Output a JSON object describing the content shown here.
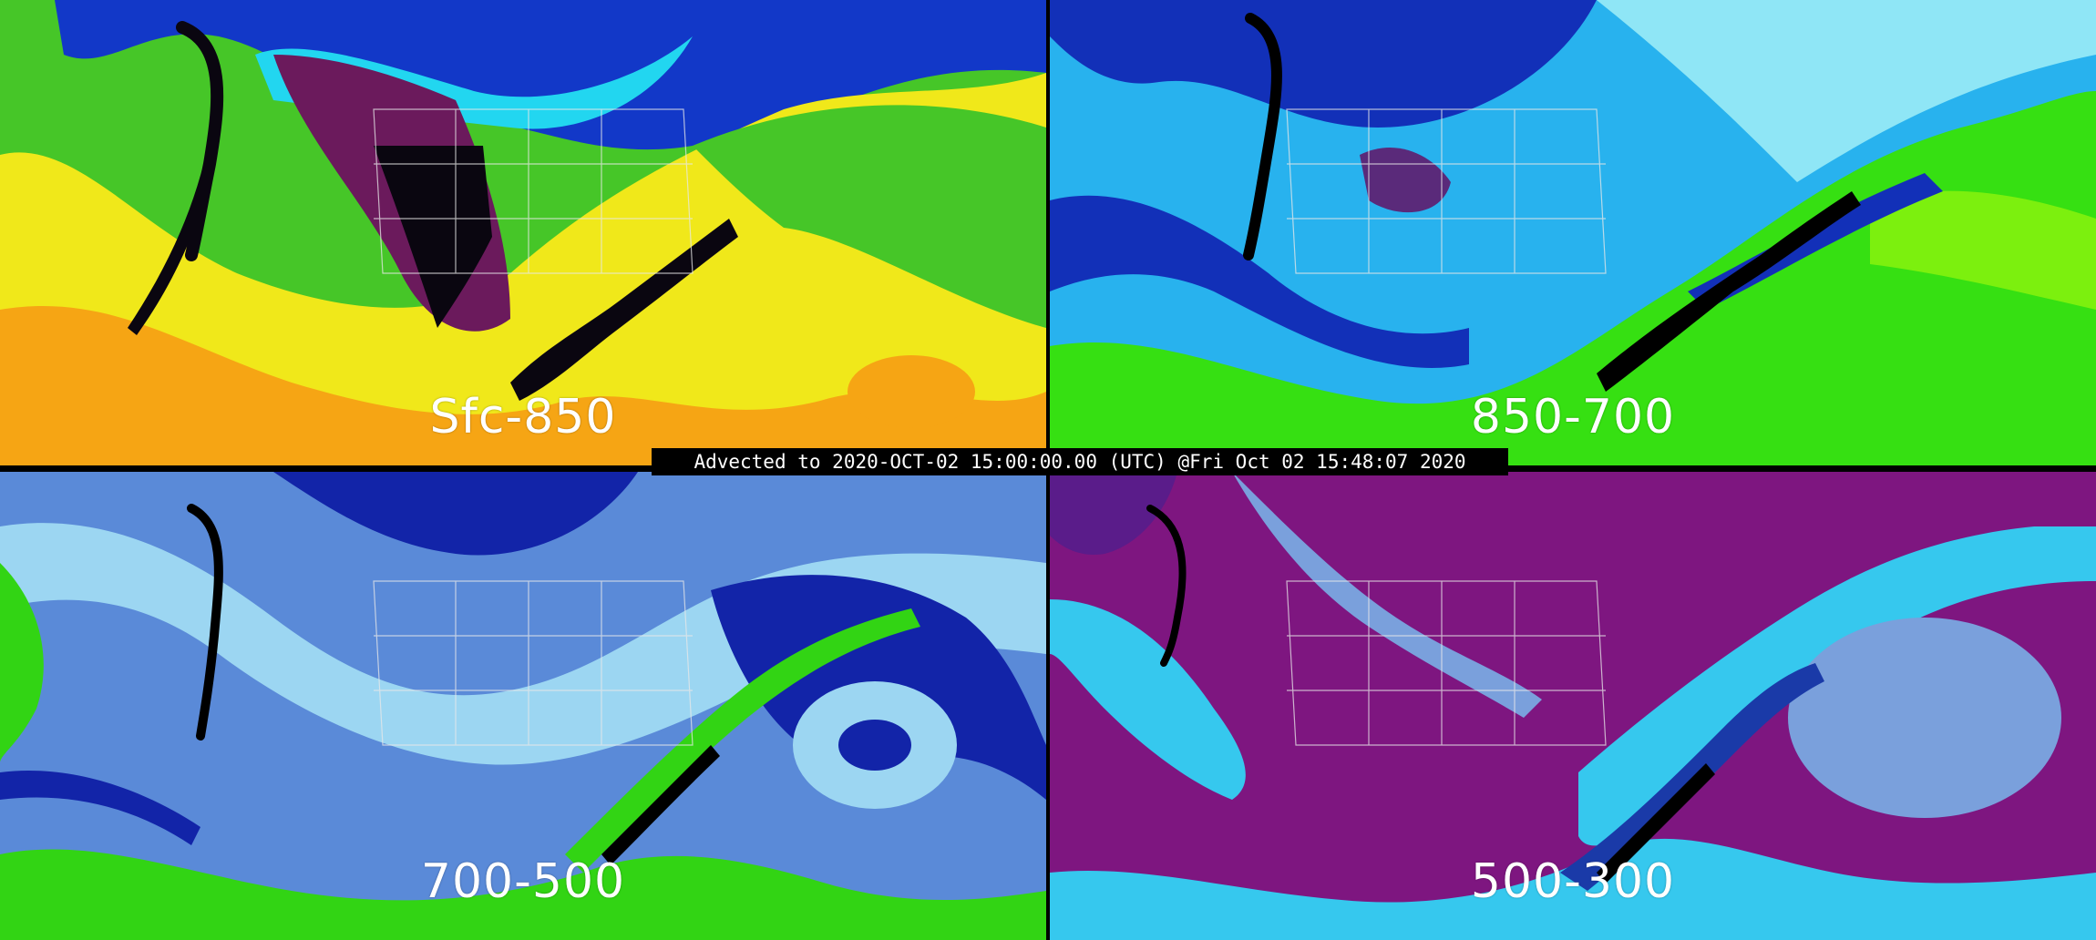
{
  "banner": {
    "text": "Advected to 2020-OCT-02 15:00:00.00 (UTC) @Fri Oct 02 15:48:07 2020"
  },
  "panels": [
    {
      "id": "tl",
      "label": "Sfc-850",
      "colors": {
        "base": "#46c628",
        "dry": "#1238c8",
        "moist": "#f0e81a",
        "veryMoist": "#f6a514",
        "extreme": "#0a0610",
        "mid": "#22d6f0",
        "accent": "#6b1a5c"
      }
    },
    {
      "id": "tr",
      "label": "850-700",
      "colors": {
        "base": "#28b2ee",
        "dry": "#1230b8",
        "moist": "#36e012",
        "veryMoist": "#7cf00e",
        "extreme": "#000000",
        "mid": "#8fe6f6",
        "accent": "#5a2a7a"
      }
    },
    {
      "id": "bl",
      "label": "700-500",
      "colors": {
        "base": "#5a8ad8",
        "dry": "#1224a8",
        "moist": "#32d414",
        "veryMoist": "#28f0f6",
        "extreme": "#000000",
        "mid": "#9cd6f2",
        "accent": "#7c4ca6"
      }
    },
    {
      "id": "br",
      "label": "500-300",
      "colors": {
        "base": "#7e1680",
        "dry": "#5a1c8a",
        "moist": "#36c8ee",
        "veryMoist": "#1a3aa8",
        "extreme": "#000000",
        "mid": "#7aa0dc",
        "accent": "#a43aa0"
      }
    }
  ]
}
